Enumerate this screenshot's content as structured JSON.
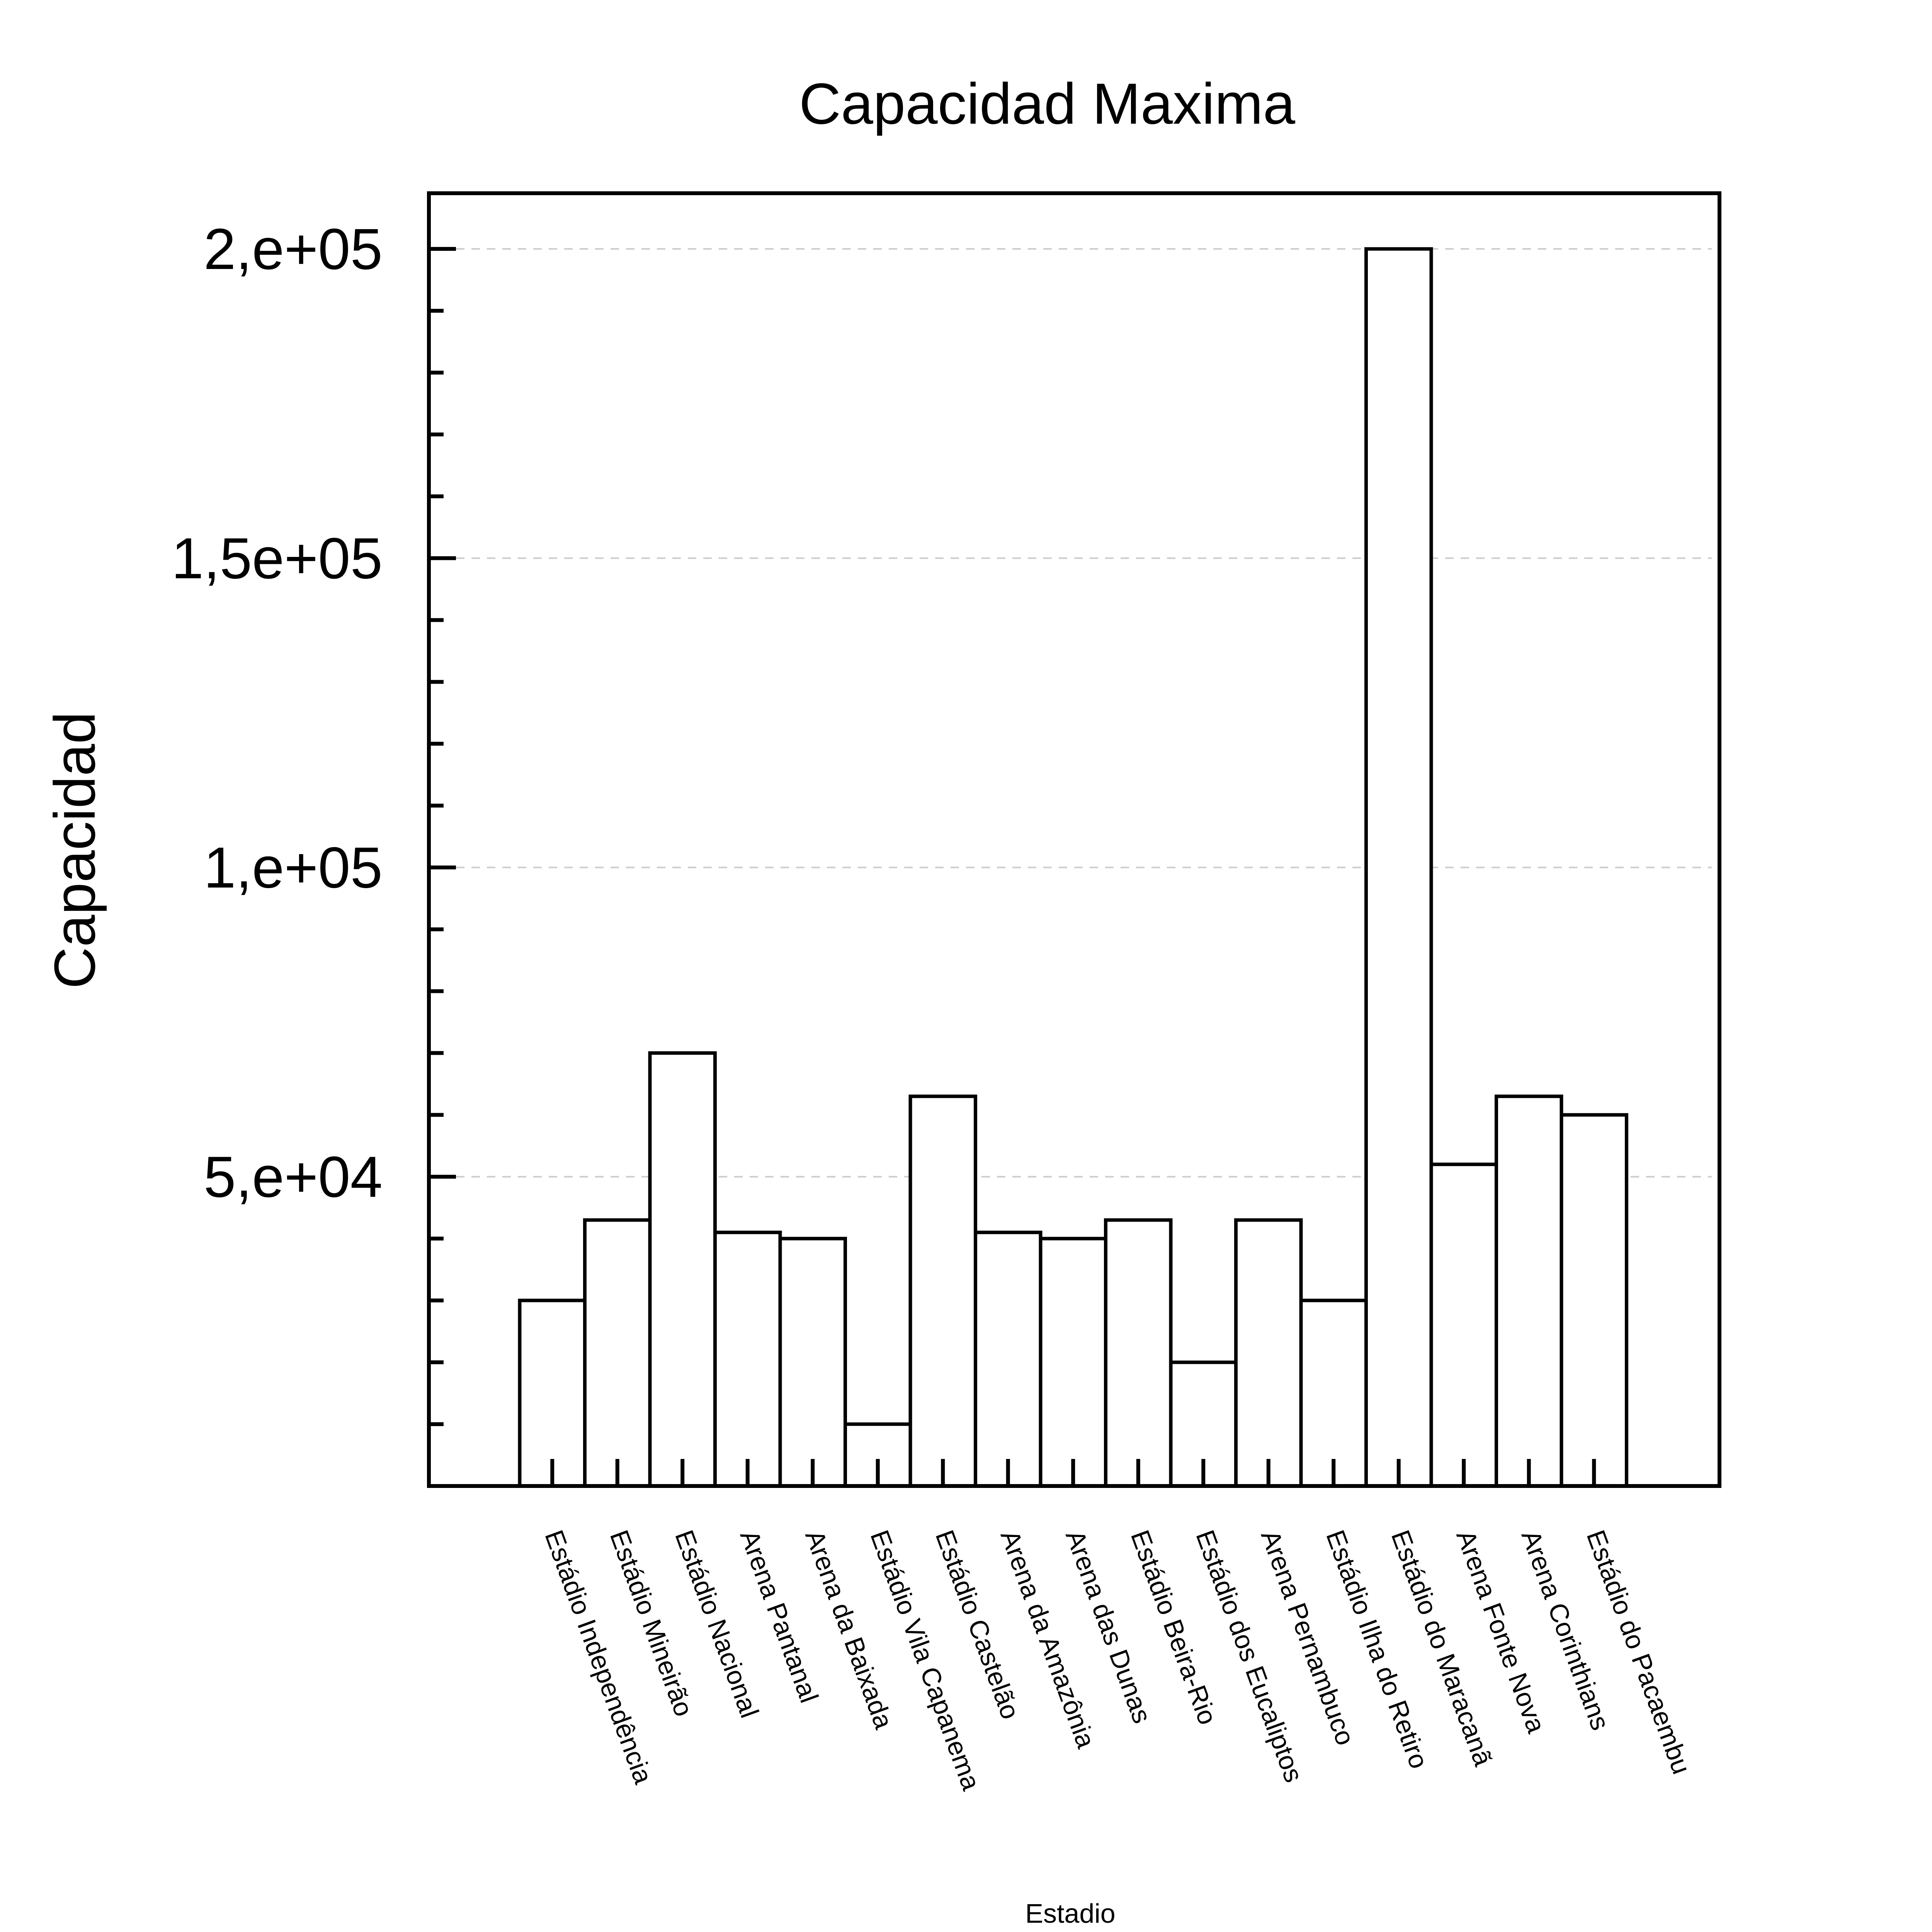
{
  "chart_data": {
    "type": "bar",
    "title": "Capacidad Maxima",
    "xlabel": "Estadio",
    "ylabel": "Capacidad",
    "ylim": [
      0,
      209000
    ],
    "yticks": [
      {
        "value": 50000,
        "label": "5,e+04"
      },
      {
        "value": 100000,
        "label": "1,e+05"
      },
      {
        "value": 150000,
        "label": "1,5e+05"
      },
      {
        "value": 200000,
        "label": "2,e+05"
      }
    ],
    "grid": true,
    "categories": [
      "Estádio Independência",
      "Estádio Mineirão",
      "Estádio Nacional",
      "Arena Pantanal",
      "Arena da Baixada",
      "Estádio Vila Capanema",
      "Estádio Castelão",
      "Arena da Amazônia",
      "Arena das Dunas",
      "Estádio Beira-Rio",
      "Estádio dos Eucaliptos",
      "Arena Pernambuco",
      "Estádio Ilha do Retiro",
      "Estádio do Maracanã",
      "Arena Fonte Nova",
      "Arena Corinthians",
      "Estádio do Pacaembu"
    ],
    "values": [
      30000,
      43000,
      70000,
      41000,
      40000,
      10000,
      63000,
      41000,
      40000,
      43000,
      20000,
      43000,
      30000,
      200000,
      52000,
      63000,
      60000
    ]
  }
}
